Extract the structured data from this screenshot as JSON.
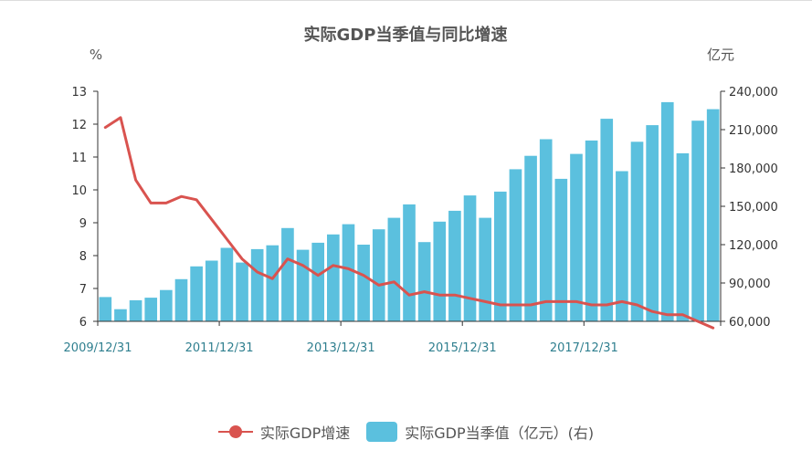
{
  "chart_data": {
    "type": "bar+line",
    "title": "实际GDP当季值与同比增速",
    "left_axis_unit": "%",
    "right_axis_unit": "亿元",
    "left_ylim": [
      6,
      13
    ],
    "left_ticks": [
      "6",
      "7",
      "8",
      "9",
      "10",
      "11",
      "12",
      "13"
    ],
    "right_ylim": [
      60000,
      240000
    ],
    "right_ticks": [
      "60,000",
      "90,000",
      "120,000",
      "150,000",
      "180,000",
      "210,000",
      "240,000"
    ],
    "x_tick_labels": [
      "2009/12/31",
      "2011/12/31",
      "2013/12/31",
      "2015/12/31",
      "2017/12/31"
    ],
    "x_tick_indices": [
      0,
      8,
      16,
      24,
      32
    ],
    "colors": {
      "line": "#d9534f",
      "bar": "#5bc0de",
      "axis": "#333333",
      "xlabel": "#2f7f8f"
    },
    "series": [
      {
        "name": "实际GDP增速",
        "kind": "line",
        "axis": "left",
        "values": [
          11.9,
          12.2,
          10.3,
          9.6,
          9.6,
          9.8,
          9.7,
          9.1,
          8.5,
          7.9,
          7.5,
          7.3,
          7.9,
          7.7,
          7.4,
          7.7,
          7.6,
          7.4,
          7.1,
          7.2,
          6.8,
          6.9,
          6.8,
          6.8,
          6.7,
          6.6,
          6.5,
          6.5,
          6.5,
          6.6,
          6.6,
          6.6,
          6.5,
          6.5,
          6.6,
          6.5,
          6.3,
          6.2,
          6.2,
          6.0,
          5.8
        ]
      },
      {
        "name": "实际GDP当季值（亿元）(右)",
        "kind": "bar",
        "axis": "right",
        "values": [
          79000,
          69500,
          76500,
          78500,
          84500,
          93000,
          103000,
          107500,
          117500,
          106000,
          116500,
          119500,
          133000,
          116000,
          121500,
          128000,
          136000,
          120000,
          132000,
          141000,
          151500,
          122000,
          138000,
          146500,
          158500,
          141000,
          161500,
          179000,
          189500,
          202500,
          171500,
          191000,
          201500,
          218500,
          177500,
          200500,
          213500,
          231500,
          191500,
          217000,
          226000
        ]
      }
    ]
  }
}
